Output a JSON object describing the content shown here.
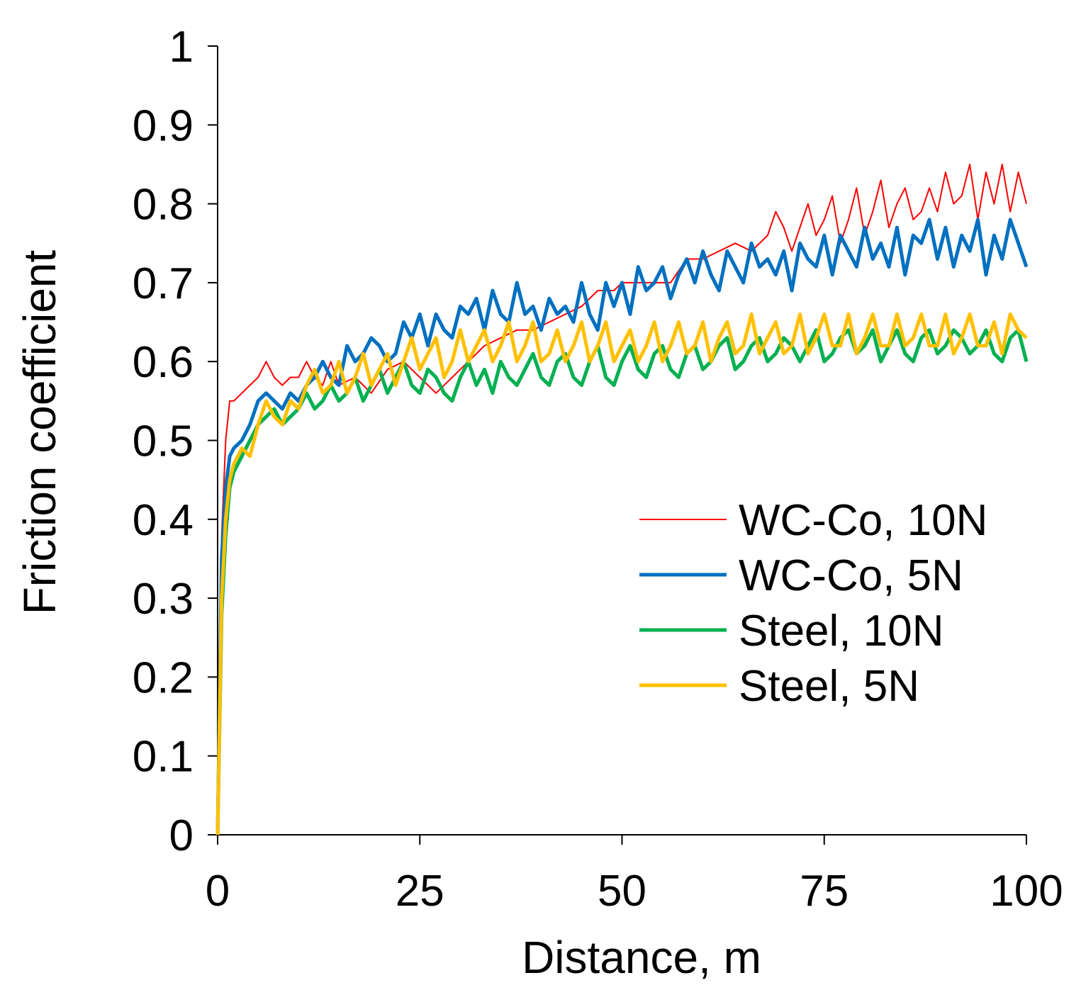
{
  "chart_data": {
    "type": "line",
    "title": "",
    "xlabel": "Distance, m",
    "ylabel": "Friction coefficient",
    "xlim": [
      0,
      100
    ],
    "ylim": [
      0,
      1
    ],
    "xticks": [
      0,
      25,
      50,
      75,
      100
    ],
    "xtick_labels": [
      "0",
      "25",
      "50",
      "75",
      "100"
    ],
    "yticks": [
      0,
      0.1,
      0.2,
      0.3,
      0.4,
      0.5,
      0.6,
      0.7,
      0.8,
      0.9,
      1
    ],
    "ytick_labels": [
      "0",
      "0.1",
      "0.2",
      "0.3",
      "0.4",
      "0.5",
      "0.6",
      "0.7",
      "0.8",
      "0.9",
      "1"
    ],
    "grid": false,
    "legend_position": "center-right",
    "series": [
      {
        "name": "WC-Co, 10N",
        "color": "#ff0000",
        "line_weight": "thin",
        "x": [
          0,
          0.5,
          1,
          1.5,
          2,
          3,
          4,
          5,
          6,
          7,
          8,
          9,
          10,
          11,
          12,
          13,
          14,
          15,
          17,
          19,
          21,
          23,
          25,
          27,
          29,
          31,
          33,
          35,
          37,
          39,
          41,
          43,
          45,
          47,
          49,
          50,
          52,
          54,
          56,
          58,
          60,
          62,
          64,
          66,
          68,
          69,
          70,
          71,
          72,
          73,
          74,
          75,
          76,
          77,
          78,
          79,
          80,
          81,
          82,
          83,
          84,
          85,
          86,
          87,
          88,
          89,
          90,
          91,
          92,
          93,
          94,
          95,
          96,
          97,
          98,
          99,
          100
        ],
        "y": [
          0.0,
          0.38,
          0.5,
          0.55,
          0.55,
          0.56,
          0.57,
          0.58,
          0.6,
          0.58,
          0.57,
          0.58,
          0.58,
          0.6,
          0.58,
          0.57,
          0.6,
          0.57,
          0.58,
          0.56,
          0.59,
          0.6,
          0.58,
          0.56,
          0.58,
          0.6,
          0.62,
          0.63,
          0.64,
          0.64,
          0.65,
          0.66,
          0.67,
          0.69,
          0.69,
          0.7,
          0.7,
          0.7,
          0.7,
          0.73,
          0.73,
          0.74,
          0.75,
          0.74,
          0.76,
          0.79,
          0.77,
          0.74,
          0.77,
          0.8,
          0.76,
          0.78,
          0.81,
          0.75,
          0.78,
          0.82,
          0.76,
          0.79,
          0.83,
          0.77,
          0.8,
          0.82,
          0.78,
          0.79,
          0.82,
          0.79,
          0.84,
          0.8,
          0.81,
          0.85,
          0.78,
          0.84,
          0.8,
          0.85,
          0.79,
          0.84,
          0.8
        ]
      },
      {
        "name": "WC-Co, 5N",
        "color": "#0070c0",
        "line_weight": "thick",
        "x": [
          0,
          0.5,
          1,
          1.5,
          2,
          3,
          4,
          5,
          6,
          7,
          8,
          9,
          10,
          11,
          12,
          13,
          14,
          15,
          16,
          17,
          18,
          19,
          20,
          21,
          22,
          23,
          24,
          25,
          26,
          27,
          28,
          29,
          30,
          31,
          32,
          33,
          34,
          35,
          36,
          37,
          38,
          39,
          40,
          41,
          42,
          43,
          44,
          45,
          46,
          47,
          48,
          49,
          50,
          51,
          52,
          53,
          54,
          55,
          56,
          57,
          58,
          59,
          60,
          61,
          62,
          63,
          64,
          65,
          66,
          67,
          68,
          69,
          70,
          71,
          72,
          73,
          74,
          75,
          76,
          77,
          78,
          79,
          80,
          81,
          82,
          83,
          84,
          85,
          86,
          87,
          88,
          89,
          90,
          91,
          92,
          93,
          94,
          95,
          96,
          97,
          98,
          99,
          100
        ],
        "y": [
          0.0,
          0.35,
          0.44,
          0.48,
          0.49,
          0.5,
          0.52,
          0.55,
          0.56,
          0.55,
          0.54,
          0.56,
          0.55,
          0.57,
          0.58,
          0.6,
          0.58,
          0.57,
          0.62,
          0.6,
          0.61,
          0.63,
          0.62,
          0.6,
          0.61,
          0.65,
          0.63,
          0.66,
          0.62,
          0.66,
          0.64,
          0.63,
          0.67,
          0.66,
          0.68,
          0.64,
          0.69,
          0.66,
          0.65,
          0.7,
          0.66,
          0.67,
          0.64,
          0.68,
          0.66,
          0.67,
          0.65,
          0.7,
          0.66,
          0.64,
          0.7,
          0.67,
          0.7,
          0.66,
          0.72,
          0.69,
          0.7,
          0.72,
          0.68,
          0.71,
          0.73,
          0.7,
          0.74,
          0.71,
          0.69,
          0.74,
          0.72,
          0.7,
          0.75,
          0.72,
          0.73,
          0.71,
          0.74,
          0.69,
          0.75,
          0.73,
          0.72,
          0.76,
          0.71,
          0.76,
          0.74,
          0.72,
          0.77,
          0.73,
          0.75,
          0.72,
          0.77,
          0.71,
          0.76,
          0.75,
          0.78,
          0.73,
          0.77,
          0.72,
          0.76,
          0.74,
          0.78,
          0.71,
          0.76,
          0.73,
          0.78,
          0.75,
          0.72
        ]
      },
      {
        "name": "Steel, 10N",
        "color": "#00b050",
        "line_weight": "thick",
        "x": [
          0,
          0.5,
          1,
          1.5,
          2,
          3,
          4,
          5,
          6,
          7,
          8,
          9,
          10,
          11,
          12,
          13,
          14,
          15,
          16,
          17,
          18,
          19,
          20,
          21,
          22,
          23,
          24,
          25,
          26,
          27,
          28,
          29,
          30,
          31,
          32,
          33,
          34,
          35,
          36,
          37,
          38,
          39,
          40,
          41,
          42,
          43,
          44,
          45,
          46,
          47,
          48,
          49,
          50,
          51,
          52,
          53,
          54,
          55,
          56,
          57,
          58,
          59,
          60,
          61,
          62,
          63,
          64,
          65,
          66,
          67,
          68,
          69,
          70,
          71,
          72,
          73,
          74,
          75,
          76,
          77,
          78,
          79,
          80,
          81,
          82,
          83,
          84,
          85,
          86,
          87,
          88,
          89,
          90,
          91,
          92,
          93,
          94,
          95,
          96,
          97,
          98,
          99,
          100
        ],
        "y": [
          0.0,
          0.28,
          0.38,
          0.44,
          0.46,
          0.48,
          0.5,
          0.52,
          0.53,
          0.54,
          0.52,
          0.53,
          0.54,
          0.56,
          0.54,
          0.55,
          0.57,
          0.55,
          0.56,
          0.58,
          0.55,
          0.57,
          0.59,
          0.56,
          0.58,
          0.6,
          0.57,
          0.56,
          0.59,
          0.58,
          0.56,
          0.55,
          0.58,
          0.6,
          0.57,
          0.59,
          0.56,
          0.6,
          0.58,
          0.57,
          0.59,
          0.61,
          0.58,
          0.57,
          0.6,
          0.61,
          0.58,
          0.57,
          0.6,
          0.62,
          0.58,
          0.57,
          0.6,
          0.62,
          0.59,
          0.58,
          0.61,
          0.62,
          0.59,
          0.58,
          0.61,
          0.62,
          0.59,
          0.6,
          0.62,
          0.63,
          0.59,
          0.6,
          0.62,
          0.63,
          0.6,
          0.61,
          0.63,
          0.62,
          0.6,
          0.62,
          0.64,
          0.6,
          0.61,
          0.63,
          0.64,
          0.61,
          0.62,
          0.64,
          0.6,
          0.62,
          0.64,
          0.61,
          0.6,
          0.63,
          0.64,
          0.61,
          0.62,
          0.64,
          0.63,
          0.61,
          0.62,
          0.64,
          0.61,
          0.6,
          0.63,
          0.64,
          0.6
        ]
      },
      {
        "name": "Steel, 5N",
        "color": "#ffc000",
        "line_weight": "thick",
        "x": [
          0,
          0.5,
          1,
          1.5,
          2,
          3,
          4,
          5,
          6,
          7,
          8,
          9,
          10,
          11,
          12,
          13,
          14,
          15,
          16,
          17,
          18,
          19,
          20,
          21,
          22,
          23,
          24,
          25,
          26,
          27,
          28,
          29,
          30,
          31,
          32,
          33,
          34,
          35,
          36,
          37,
          38,
          39,
          40,
          41,
          42,
          43,
          44,
          45,
          46,
          47,
          48,
          49,
          50,
          51,
          52,
          53,
          54,
          55,
          56,
          57,
          58,
          59,
          60,
          61,
          62,
          63,
          64,
          65,
          66,
          67,
          68,
          69,
          70,
          71,
          72,
          73,
          74,
          75,
          76,
          77,
          78,
          79,
          80,
          81,
          82,
          83,
          84,
          85,
          86,
          87,
          88,
          89,
          90,
          91,
          92,
          93,
          94,
          95,
          96,
          97,
          98,
          99,
          100
        ],
        "y": [
          0.0,
          0.3,
          0.4,
          0.45,
          0.47,
          0.49,
          0.48,
          0.52,
          0.55,
          0.53,
          0.52,
          0.55,
          0.54,
          0.57,
          0.59,
          0.56,
          0.57,
          0.6,
          0.56,
          0.58,
          0.61,
          0.57,
          0.59,
          0.61,
          0.57,
          0.6,
          0.63,
          0.59,
          0.61,
          0.63,
          0.58,
          0.6,
          0.64,
          0.6,
          0.62,
          0.64,
          0.6,
          0.62,
          0.65,
          0.6,
          0.62,
          0.65,
          0.6,
          0.61,
          0.64,
          0.6,
          0.62,
          0.65,
          0.6,
          0.62,
          0.65,
          0.6,
          0.62,
          0.64,
          0.6,
          0.62,
          0.65,
          0.6,
          0.62,
          0.65,
          0.61,
          0.62,
          0.65,
          0.6,
          0.63,
          0.65,
          0.61,
          0.62,
          0.66,
          0.61,
          0.63,
          0.65,
          0.61,
          0.62,
          0.66,
          0.61,
          0.63,
          0.66,
          0.62,
          0.62,
          0.66,
          0.61,
          0.63,
          0.66,
          0.62,
          0.62,
          0.66,
          0.62,
          0.63,
          0.66,
          0.62,
          0.62,
          0.66,
          0.61,
          0.63,
          0.66,
          0.62,
          0.62,
          0.65,
          0.61,
          0.66,
          0.64,
          0.63
        ]
      }
    ]
  }
}
